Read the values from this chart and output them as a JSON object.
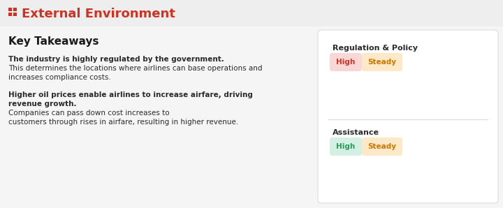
{
  "bg_color": "#f5f5f5",
  "card_bg": "#ffffff",
  "header_bg": "#eeeeee",
  "header_color": "#cc3322",
  "header_icon_color": "#cc3322",
  "header_text": "External Environment",
  "section_title": "Key Takeaways",
  "section_title_color": "#1a1a1a",
  "para1_bold": "The industry is highly regulated by the government.",
  "para1_line2": "This determines the locations where airlines can base operations and",
  "para1_line3": "increases compliance costs.",
  "para2_bold_line1": "Higher oil prices enable airlines to increase airfare, driving",
  "para2_bold_line2": "revenue growth.",
  "para2_line2": "Companies can pass down cost increases to",
  "para2_line3": "customers through rises in airfare, resulting in higher revenue.",
  "text_color": "#2a2a2a",
  "card1_title": "Regulation & Policy",
  "card1_badge1_text": "High",
  "card1_badge1_bg": "#fad7d7",
  "card1_badge1_fg": "#cc3322",
  "card1_badge2_text": "Steady",
  "card1_badge2_bg": "#fde8c8",
  "card1_badge2_fg": "#c87800",
  "card2_title": "Assistance",
  "card2_badge1_text": "High",
  "card2_badge1_bg": "#d4f0e2",
  "card2_badge1_fg": "#2a9a5a",
  "card2_badge2_text": "Steady",
  "card2_badge2_bg": "#fde8c8",
  "card2_badge2_fg": "#c87800",
  "card_title_color": "#2a2a2a",
  "figw": 7.2,
  "figh": 2.98,
  "dpi": 100
}
